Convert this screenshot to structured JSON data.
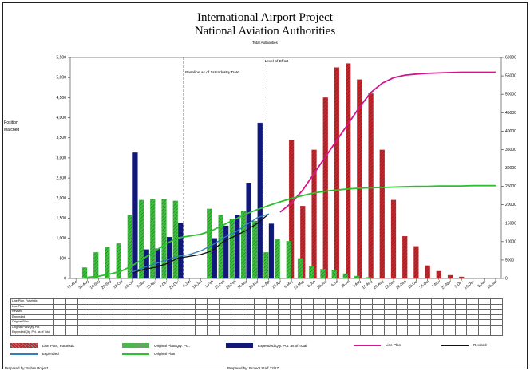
{
  "title": "International Airport Project",
  "subtitle": "National Aviation Authorities",
  "sub_subtitle": "Total Authorities",
  "chart_data": {
    "type": "bar",
    "categories": [
      "17-Aug",
      "31-Aug",
      "14-Sep",
      "28-Sep",
      "12-Oct",
      "26-Oct",
      "9-Nov",
      "23-Nov",
      "7-Dec",
      "21-Dec",
      "4-Jan",
      "18-Jan",
      "1-Feb",
      "15-Feb",
      "29-Feb",
      "14-Mar",
      "28-Mar",
      "11-Apr",
      "25-Apr",
      "9-May",
      "23-May",
      "6-Jun",
      "20-Jun",
      "4-Jul",
      "18-Jul",
      "1-Aug",
      "15-Aug",
      "29-Aug",
      "12-Sep",
      "26-Sep",
      "10-Oct",
      "24-Oct",
      "7-Nov",
      "21-Nov",
      "5-Dec",
      "19-Dec",
      "2-Jan",
      "16-Jan"
    ],
    "left_axis": {
      "min": 0,
      "max": 5500,
      "ticks": [
        0,
        500,
        1000,
        1500,
        2000,
        2500,
        3000,
        3500,
        4000,
        4500,
        5000,
        5500
      ],
      "label": "Position Matched"
    },
    "right_axis": {
      "min": 0,
      "max": 60000,
      "ticks": [
        0,
        5000,
        10000,
        15000,
        20000,
        25000,
        30000,
        35000,
        40000,
        45000,
        50000,
        55000,
        60000
      ]
    },
    "series": [
      {
        "name": "Line Plan, Futuristic",
        "type": "bar",
        "axis": "left",
        "color": "#c0282d",
        "values": [
          null,
          null,
          null,
          null,
          null,
          null,
          null,
          null,
          null,
          null,
          null,
          null,
          null,
          null,
          null,
          null,
          null,
          null,
          null,
          3450,
          1800,
          3200,
          4500,
          5250,
          5350,
          4950,
          4600,
          3200,
          1950,
          1050,
          800,
          320,
          180,
          80,
          40,
          null,
          null,
          null
        ]
      },
      {
        "name": "Original Plan/Qty. Pct.",
        "type": "bar",
        "axis": "left",
        "color": "#3fbf3f",
        "values": [
          null,
          270,
          650,
          780,
          870,
          1580,
          1950,
          1980,
          1980,
          1930,
          null,
          null,
          1730,
          1580,
          1480,
          1680,
          1430,
          650,
          980,
          930,
          500,
          300,
          230,
          210,
          120,
          60,
          30,
          null,
          null,
          null,
          null,
          null,
          null,
          null,
          null,
          null,
          null,
          null
        ]
      },
      {
        "name": "Expended/Qty. Pct. as of Total",
        "type": "bar",
        "axis": "left",
        "color": "#10187a",
        "values": [
          null,
          null,
          null,
          null,
          null,
          3130,
          720,
          740,
          1030,
          1370,
          null,
          null,
          1000,
          1310,
          1580,
          2380,
          3870,
          1360,
          null,
          null,
          null,
          null,
          null,
          null,
          null,
          null,
          null,
          null,
          null,
          null,
          null,
          null,
          null,
          null,
          null,
          null,
          null,
          null
        ]
      },
      {
        "name": "Line Plan",
        "type": "line",
        "axis": "right",
        "color": "#d4148c",
        "values": [
          null,
          null,
          null,
          null,
          null,
          null,
          null,
          null,
          null,
          null,
          null,
          null,
          null,
          null,
          null,
          null,
          null,
          null,
          18000,
          20500,
          24000,
          28500,
          33000,
          37500,
          42000,
          46500,
          50500,
          53000,
          54500,
          55200,
          55500,
          55700,
          55800,
          55900,
          56000,
          56000,
          56000,
          56000
        ]
      },
      {
        "name": "Revised",
        "type": "line",
        "axis": "right",
        "color": "#111111",
        "values": [
          null,
          null,
          null,
          null,
          null,
          1500,
          2500,
          3000,
          4000,
          5500,
          6000,
          6500,
          7500,
          10000,
          11500,
          13000,
          15000,
          17500,
          null,
          null,
          null,
          null,
          null,
          null,
          null,
          null,
          null,
          null,
          null,
          null,
          null,
          null,
          null,
          null,
          null,
          null,
          null,
          null
        ]
      },
      {
        "name": "Expended",
        "type": "line",
        "axis": "right",
        "color": "#2f7fbf",
        "values": [
          null,
          null,
          null,
          null,
          null,
          1800,
          3000,
          4000,
          5000,
          6000,
          6500,
          7500,
          9000,
          11000,
          12500,
          14500,
          16500,
          17500,
          null,
          null,
          null,
          null,
          null,
          null,
          null,
          null,
          null,
          null,
          null,
          null,
          null,
          null,
          null,
          null,
          null,
          null,
          null,
          null
        ]
      },
      {
        "name": "Original Plan",
        "type": "line",
        "axis": "right",
        "color": "#2cc02c",
        "values": [
          null,
          300,
          600,
          1200,
          2000,
          3500,
          5500,
          7500,
          9500,
          11000,
          11500,
          12000,
          13000,
          14500,
          16000,
          17500,
          18700,
          19800,
          20800,
          21700,
          22500,
          23200,
          23700,
          24000,
          24300,
          24500,
          24600,
          24700,
          24800,
          24900,
          25000,
          25000,
          25100,
          25100,
          25100,
          25200,
          25200,
          25200
        ]
      }
    ],
    "annotations": [
      {
        "text": "Baseline as of 1st Industry Date",
        "x_index": 10
      },
      {
        "text": "Level of Effort",
        "x_index": 17
      }
    ],
    "grid": false,
    "legend": "bottom"
  },
  "table": {
    "row_labels": [
      "Line Plan, Futuristic",
      "Line Plan",
      "Revised",
      "Expended",
      "Original Plan",
      "Original Plan/Qty. Pct.",
      "Expended/Qty. Pct. as of Total"
    ]
  },
  "legend": [
    {
      "label": "Line Plan, Futuristic",
      "color": "#c0282d",
      "kind": "bar-hatch"
    },
    {
      "label": "Original Plan/Qty. Pct.",
      "color": "#3fbf3f",
      "kind": "bar-hatch"
    },
    {
      "label": "Expended/Qty. Pct. as of Total",
      "color": "#10187a",
      "kind": "bar"
    },
    {
      "label": "Line Plan",
      "color": "#d4148c",
      "kind": "line"
    },
    {
      "label": "Revised",
      "color": "#111111",
      "kind": "line"
    },
    {
      "label": "Expended",
      "color": "#2f7fbf",
      "kind": "line"
    },
    {
      "label": "Original Plan",
      "color": "#2cc02c",
      "kind": "line"
    }
  ],
  "footer": {
    "left": "Prepared by: Sabre Project",
    "right": "Prepared by: Project Staff 12/17"
  }
}
